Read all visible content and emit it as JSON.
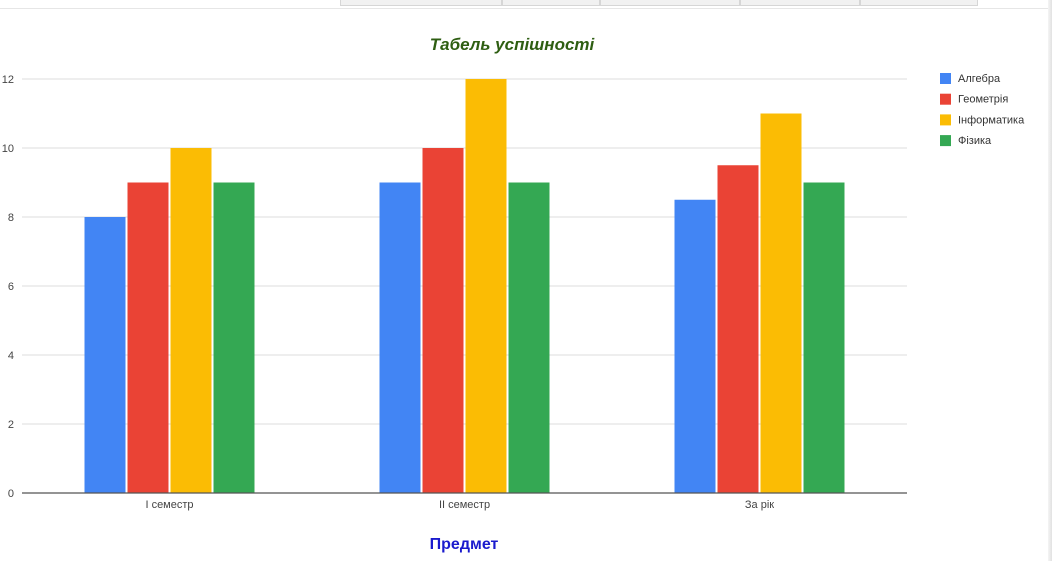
{
  "chart_data": {
    "type": "bar",
    "title": "Табель успішності",
    "xlabel": "Предмет",
    "ylabel": "",
    "categories": [
      "І семестр",
      "ІІ семестр",
      "За рік"
    ],
    "series": [
      {
        "name": "Алгебра",
        "values": [
          8,
          9,
          8.5
        ],
        "color": "#4285f4"
      },
      {
        "name": "Геометрія",
        "values": [
          9,
          10,
          9.5
        ],
        "color": "#ea4335"
      },
      {
        "name": "Інформатика",
        "values": [
          10,
          12,
          11
        ],
        "color": "#fbbc04"
      },
      {
        "name": "Фізика",
        "values": [
          9,
          9,
          9
        ],
        "color": "#34a853"
      }
    ],
    "ylim": [
      0,
      12
    ],
    "yticks": [
      0,
      2,
      4,
      6,
      8,
      10,
      12
    ],
    "grid": true,
    "legend_position": "right",
    "title_color": "#2e5e12",
    "xlabel_color": "#1a1acd"
  }
}
